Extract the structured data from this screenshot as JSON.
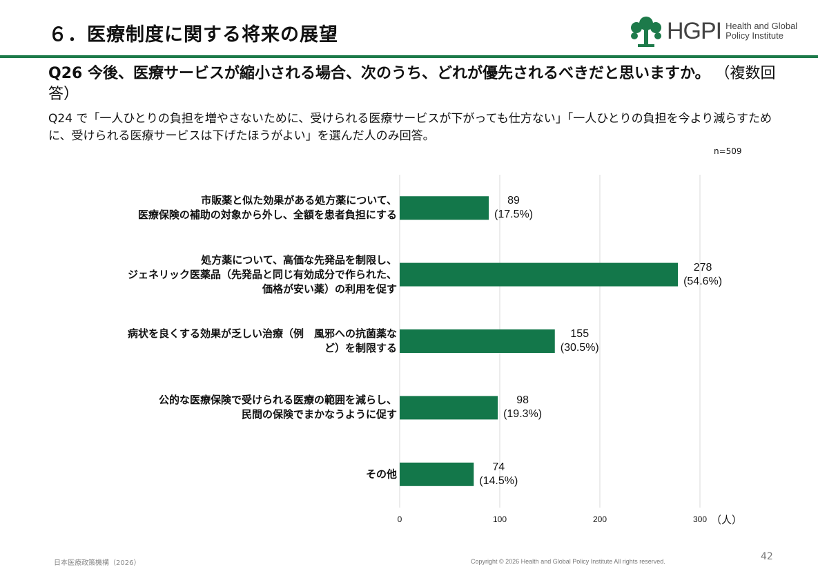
{
  "header": {
    "title": "６．医療制度に関する将来の展望",
    "logo_text": "HGPI",
    "logo_sub_1": "Health and Global",
    "logo_sub_2": "Policy Institute"
  },
  "question": {
    "text": "Q26 今後、医療サービスが縮小される場合、次のうち、どれが優先されるべきだと思いますか。",
    "multi": "（複数回答）",
    "note": "Q24 で「一人ひとりの負担を増やさないために、受けられる医療サービスが下がっても仕方ない」「一人ひとりの負担を今より減らすために、受けられる医療サービスは下げたほうがよい」を選んだ人のみ回答。",
    "n": "n=509"
  },
  "colors": {
    "accent": "#1d7a4a",
    "bar": "#13774a",
    "grid": "#d9d9d9"
  },
  "chart_data": {
    "type": "bar",
    "orientation": "horizontal",
    "categories": [
      "市販薬と似た効果がある処方薬について、\n医療保険の補助の対象から外し、全額を患者負担にする",
      "処方薬について、高価な先発品を制限し、\nジェネリック医薬品（先発品と同じ有効成分で作られた、\n価格が安い薬）の利用を促す",
      "病状を良くする効果が乏しい治療（例　風邪への抗菌薬な\nど）を制限する",
      "公的な医療保険で受けられる医療の範囲を減らし、\n民間の保険でまかなうように促す",
      "その他"
    ],
    "values": [
      89,
      278,
      155,
      98,
      74
    ],
    "percent_labels": [
      "(17.5%)",
      "(54.6%)",
      "(30.5%)",
      "(19.3%)",
      "(14.5%)"
    ],
    "xlim": [
      0,
      300
    ],
    "xticks": [
      "0",
      "100",
      "200",
      "300"
    ],
    "xlabel": "（人）",
    "grid": true
  },
  "footer": {
    "left": "日本医療政策機構（2026）",
    "copyright": "Copyright © 2026 Health and Global Policy Institute  All rights reserved.",
    "page": "42"
  }
}
